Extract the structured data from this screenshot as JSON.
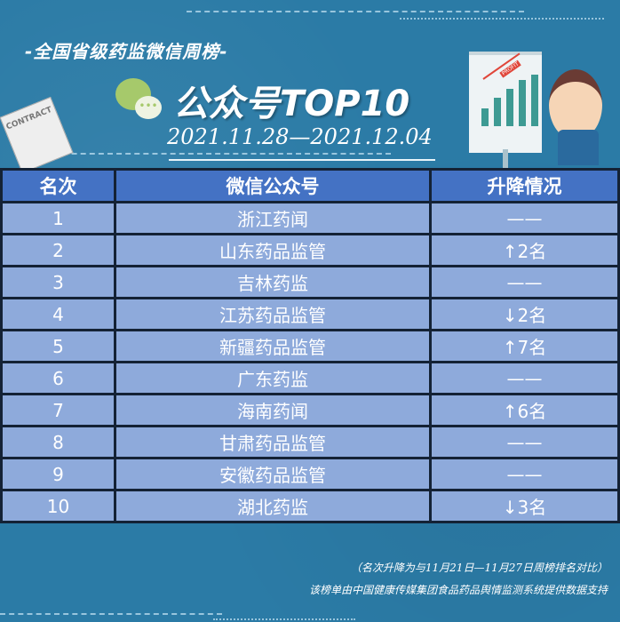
{
  "header": {
    "subtitle": "-全国省级药监微信周榜-",
    "title": "公众号TOP10",
    "date_range": "2021.11.28—2021.12.04",
    "contract_label": "CONTRACT",
    "board_label": "PROFIT"
  },
  "table": {
    "columns": [
      "名次",
      "微信公众号",
      "升降情况"
    ],
    "rows": [
      {
        "rank": "1",
        "name": "浙江药闻",
        "change": "——"
      },
      {
        "rank": "2",
        "name": "山东药品监管",
        "change": "↑2名"
      },
      {
        "rank": "3",
        "name": "吉林药监",
        "change": "——"
      },
      {
        "rank": "4",
        "name": "江苏药品监管",
        "change": "↓2名"
      },
      {
        "rank": "5",
        "name": "新疆药品监管",
        "change": "↑7名"
      },
      {
        "rank": "6",
        "name": "广东药监",
        "change": "——"
      },
      {
        "rank": "7",
        "name": "海南药闻",
        "change": "↑6名"
      },
      {
        "rank": "8",
        "name": "甘肃药品监管",
        "change": "——"
      },
      {
        "rank": "9",
        "name": "安徽药品监管",
        "change": "——"
      },
      {
        "rank": "10",
        "name": "湖北药监",
        "change": "↓3名"
      }
    ]
  },
  "footer": {
    "note1": "（名次升降为与11月21日—11月27日周榜排名对比）",
    "note2": "该榜单由中国健康传媒集团食品药品舆情监测系统提供数据支持"
  },
  "colors": {
    "background": "#2b7ba6",
    "header": "#4472c4",
    "row": "#8eaadb",
    "border": "#142235"
  }
}
